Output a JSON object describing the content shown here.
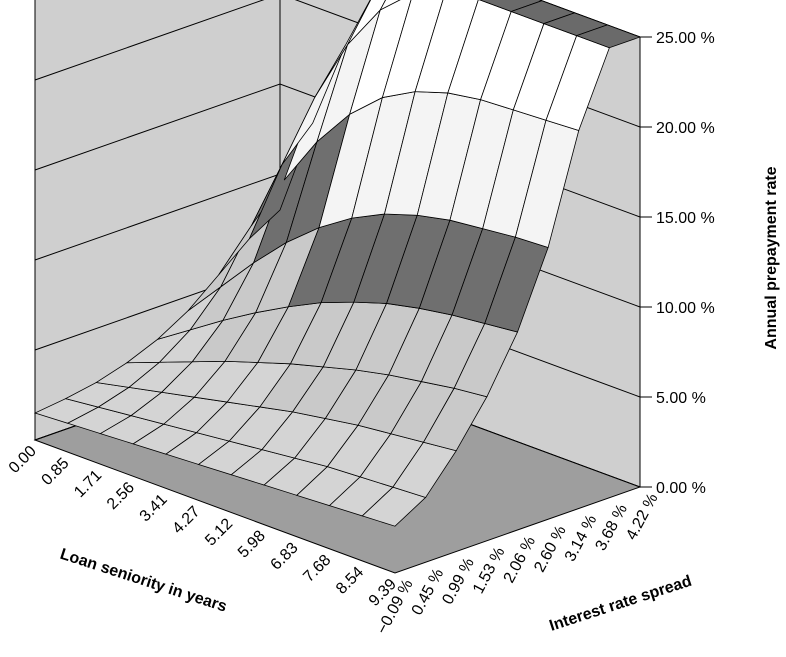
{
  "chart_data": {
    "type": "surface",
    "title": "",
    "x_axis": {
      "label": "Loan seniority in years",
      "ticks": [
        "0.00",
        "0.85",
        "1.71",
        "2.56",
        "3.41",
        "4.27",
        "5.12",
        "5.98",
        "6.83",
        "7.68",
        "8.54",
        "9.39"
      ]
    },
    "y_axis": {
      "label": "Interest rate spread",
      "ticks": [
        "−0.09 %",
        "0.45 %",
        "0.99 %",
        "1.53 %",
        "2.06 %",
        "2.60 %",
        "3.14 %",
        "3.68 %",
        "4.22 %"
      ]
    },
    "z_axis": {
      "label": "Annual prepayment rate",
      "ticks": [
        "0.00 %",
        "5.00 %",
        "10.00 %",
        "15.00 %",
        "20.00 %",
        "25.00 %"
      ],
      "range": [
        0,
        25
      ]
    },
    "band_colors": {
      "0-5": "#d4d4d4",
      "5-10": "#c9c9c9",
      "10-15": "#6f6f6f",
      "15-20": "#f4f4f4",
      "20-25": "#ffffff",
      "25+": "#6a6a6a"
    },
    "wall_color": "#cfcfcf",
    "floor_color": "#9e9e9e",
    "surface_description_values": {
      "rows_spread": [
        -0.09,
        0.45,
        0.99,
        1.53,
        2.06,
        2.6,
        3.14,
        3.68,
        4.22
      ],
      "cols_seniority": [
        0.0,
        0.85,
        1.71,
        2.56,
        3.41,
        4.27,
        5.12,
        5.98,
        6.83,
        7.68,
        8.54,
        9.39
      ],
      "rate_percent": [
        [
          1.5,
          1.6,
          1.7,
          1.8,
          1.9,
          2.0,
          2.1,
          2.2,
          2.3,
          2.4,
          2.5,
          2.6
        ],
        [
          1.7,
          1.9,
          2.1,
          2.3,
          2.5,
          2.7,
          2.9,
          3.1,
          3.3,
          3.4,
          3.5,
          3.6
        ],
        [
          2.0,
          2.4,
          2.8,
          3.2,
          3.6,
          4.0,
          4.4,
          4.7,
          5.0,
          5.2,
          5.4,
          5.6
        ],
        [
          2.5,
          3.2,
          3.9,
          4.6,
          5.2,
          5.8,
          6.3,
          6.8,
          7.2,
          7.5,
          7.8,
          8.0
        ],
        [
          3.2,
          4.4,
          5.6,
          6.7,
          7.7,
          8.6,
          9.3,
          9.9,
          10.3,
          10.6,
          10.8,
          11.0
        ],
        [
          4.2,
          6.2,
          8.2,
          10.0,
          11.5,
          12.7,
          13.6,
          14.2,
          14.6,
          14.8,
          15.0,
          15.1
        ],
        [
          5.6,
          9.0,
          12.2,
          15.0,
          17.2,
          18.8,
          19.8,
          20.4,
          20.7,
          20.8,
          20.9,
          21.0
        ],
        [
          7.0,
          11.8,
          16.2,
          19.8,
          22.4,
          24.0,
          24.8,
          25.2,
          25.3,
          25.3,
          25.3,
          25.3
        ],
        [
          8.0,
          13.5,
          18.5,
          22.5,
          25.0,
          26.2,
          26.8,
          27.0,
          27.0,
          27.0,
          27.0,
          27.0
        ]
      ]
    }
  }
}
